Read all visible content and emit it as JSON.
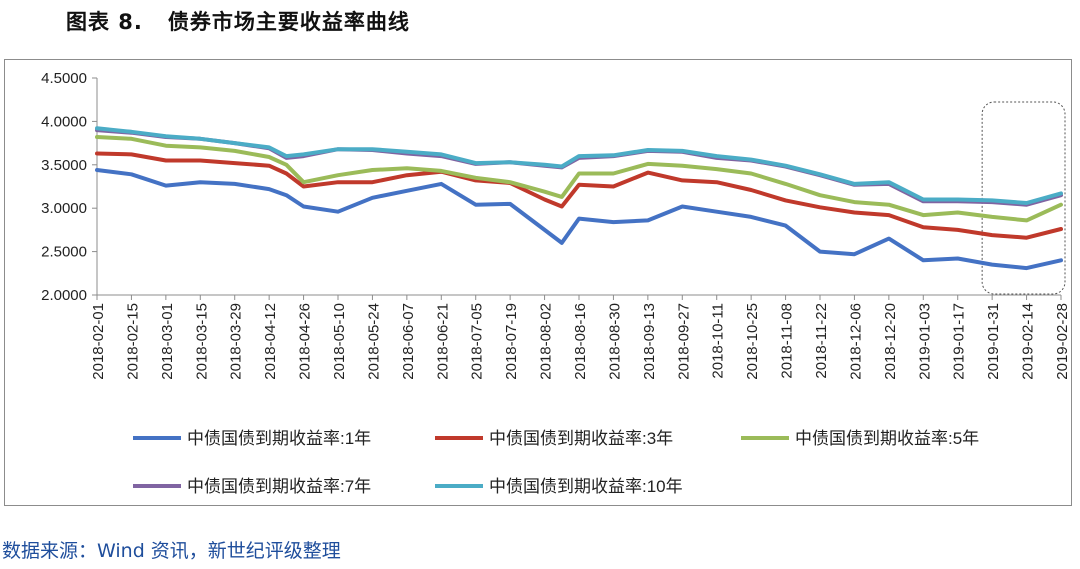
{
  "figure": {
    "title": "图表 8.   债券市场主要收益率曲线",
    "source": "数据来源：Wind 资讯，新世纪评级整理"
  },
  "chart_data": {
    "type": "line",
    "title": "",
    "xlabel": "",
    "ylabel": "",
    "ylim": [
      2.0,
      4.5
    ],
    "yticks": [
      "2.0000",
      "2.5000",
      "3.0000",
      "3.5000",
      "4.0000",
      "4.5000"
    ],
    "xticks": [
      "2018-02-01",
      "2018-02-15",
      "2018-03-01",
      "2018-03-15",
      "2018-03-29",
      "2018-04-12",
      "2018-04-26",
      "2018-05-10",
      "2018-05-24",
      "2018-06-07",
      "2018-06-21",
      "2018-07-05",
      "2018-07-19",
      "2018-08-02",
      "2018-08-16",
      "2018-08-30",
      "2018-09-13",
      "2018-09-27",
      "2018-10-11",
      "2018-10-25",
      "2018-11-08",
      "2018-11-22",
      "2018-12-06",
      "2018-12-20",
      "2019-01-03",
      "2019-01-17",
      "2019-01-31",
      "2019-02-14",
      "2019-02-28"
    ],
    "grid": false,
    "legend_position": "bottom",
    "highlight_range": [
      "2019-01-31",
      "2019-02-28"
    ],
    "x": [
      "2018-02-01",
      "2018-02-15",
      "2018-03-01",
      "2018-03-15",
      "2018-03-29",
      "2018-04-12",
      "2018-04-19",
      "2018-04-26",
      "2018-05-10",
      "2018-05-24",
      "2018-06-07",
      "2018-06-21",
      "2018-07-05",
      "2018-07-19",
      "2018-08-02",
      "2018-08-09",
      "2018-08-16",
      "2018-08-30",
      "2018-09-13",
      "2018-09-27",
      "2018-10-11",
      "2018-10-25",
      "2018-11-08",
      "2018-11-22",
      "2018-12-06",
      "2018-12-20",
      "2019-01-03",
      "2019-01-17",
      "2019-01-31",
      "2019-02-14",
      "2019-02-28"
    ],
    "series": [
      {
        "name": "中债国债到期收益率:1年",
        "color": "#4472c4",
        "values": [
          3.44,
          3.39,
          3.26,
          3.3,
          3.28,
          3.22,
          3.15,
          3.02,
          2.96,
          3.12,
          3.2,
          3.28,
          3.04,
          3.05,
          2.75,
          2.6,
          2.88,
          2.84,
          2.86,
          3.02,
          2.96,
          2.9,
          2.8,
          2.5,
          2.47,
          2.65,
          2.4,
          2.42,
          2.35,
          2.31,
          2.4
        ]
      },
      {
        "name": "中债国债到期收益率:3年",
        "color": "#c0392b",
        "values": [
          3.63,
          3.62,
          3.55,
          3.55,
          3.52,
          3.49,
          3.4,
          3.25,
          3.3,
          3.3,
          3.38,
          3.42,
          3.32,
          3.29,
          3.1,
          3.02,
          3.27,
          3.25,
          3.41,
          3.32,
          3.3,
          3.21,
          3.09,
          3.01,
          2.95,
          2.92,
          2.78,
          2.75,
          2.69,
          2.66,
          2.76
        ]
      },
      {
        "name": "中债国债到期收益率:5年",
        "color": "#9bbb59",
        "values": [
          3.82,
          3.8,
          3.72,
          3.7,
          3.66,
          3.59,
          3.5,
          3.3,
          3.38,
          3.44,
          3.46,
          3.43,
          3.35,
          3.3,
          3.19,
          3.13,
          3.4,
          3.4,
          3.51,
          3.49,
          3.45,
          3.4,
          3.28,
          3.15,
          3.07,
          3.04,
          2.92,
          2.95,
          2.9,
          2.86,
          3.04
        ]
      },
      {
        "name": "中债国债到期收益率:7年",
        "color": "#8064a2",
        "values": [
          3.9,
          3.87,
          3.82,
          3.8,
          3.75,
          3.69,
          3.58,
          3.6,
          3.68,
          3.67,
          3.63,
          3.6,
          3.51,
          3.53,
          3.49,
          3.47,
          3.58,
          3.6,
          3.66,
          3.65,
          3.58,
          3.55,
          3.48,
          3.38,
          3.27,
          3.28,
          3.08,
          3.08,
          3.07,
          3.04,
          3.15
        ]
      },
      {
        "name": "中债国债到期收益率:10年",
        "color": "#4bacc6",
        "values": [
          3.92,
          3.88,
          3.83,
          3.8,
          3.75,
          3.7,
          3.6,
          3.62,
          3.68,
          3.68,
          3.65,
          3.62,
          3.52,
          3.53,
          3.5,
          3.48,
          3.6,
          3.61,
          3.67,
          3.66,
          3.6,
          3.56,
          3.49,
          3.39,
          3.28,
          3.3,
          3.1,
          3.1,
          3.09,
          3.06,
          3.17
        ]
      }
    ]
  }
}
